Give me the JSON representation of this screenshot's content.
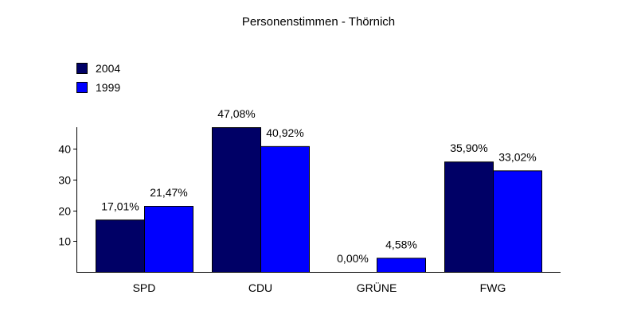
{
  "chart_data": {
    "type": "bar",
    "title": "Personenstimmen - Thörnich",
    "categories": [
      "SPD",
      "CDU",
      "GRÜNE",
      "FWG"
    ],
    "series": [
      {
        "name": "2004",
        "color": "#000066",
        "values": [
          17.01,
          47.08,
          0.0,
          35.9
        ],
        "labels": [
          "17,01%",
          "47,08%",
          "0,00%",
          "35,90%"
        ]
      },
      {
        "name": "1999",
        "color": "#0000ff",
        "values": [
          21.47,
          40.92,
          4.58,
          33.02
        ],
        "labels": [
          "21,47%",
          "40,92%",
          "4,58%",
          "33,02%"
        ]
      }
    ],
    "yticks": [
      10,
      20,
      30,
      40
    ],
    "ylim": [
      0,
      47.08
    ],
    "legend_position": "top-left",
    "grid": false
  }
}
